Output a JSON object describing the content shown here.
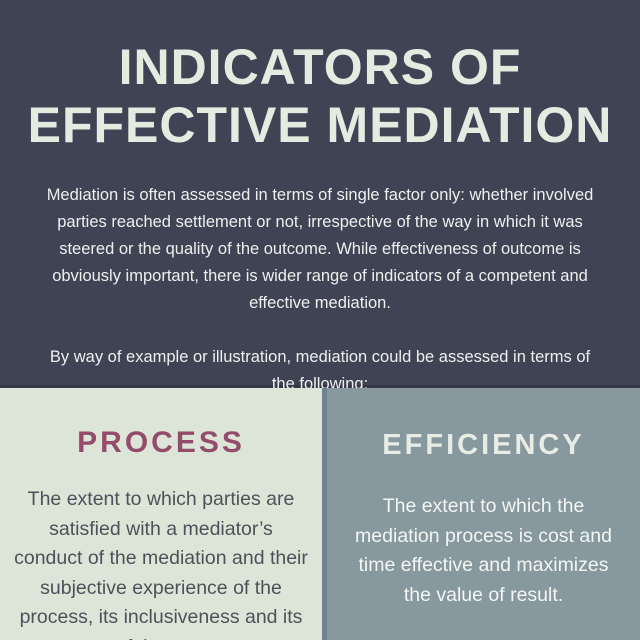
{
  "palette": {
    "dark-bg": "#3f4354",
    "dark-bg-edge": "#343746",
    "title-cream": "#e4ece1",
    "body-white": "#edf0ee",
    "sage-bg": "#dde5d9",
    "berry": "#934d6b",
    "left-text": "#4a535a",
    "bluegray-bg": "#87989f",
    "divider": "#6f8492",
    "right-heading-cream": "#e7ece4",
    "right-text": "#f3f6f3"
  },
  "header": {
    "title_line1": "INDICATORS OF",
    "title_line2": "EFFECTIVE MEDIATION",
    "intro": "Mediation is often assessed in terms of single factor only: whether involved parties reached settlement or not, irrespective of the way in which it was steered or the quality of the outcome. While effectiveness of outcome is obviously important, there is wider range of indicators of a competent and effective mediation.",
    "lead_in": "By way of example or illustration, mediation could be assessed in terms of the following:"
  },
  "columns": [
    {
      "heading": "PROCESS",
      "body": "The extent to which parties are satisfied with a mediator’s conduct of the mediation and their subjective experience of the process, its inclusiveness and its fairness"
    },
    {
      "heading": "EFFICIENCY",
      "body": "The extent to which the mediation process is cost and time effective and maximizes the value of result."
    }
  ]
}
